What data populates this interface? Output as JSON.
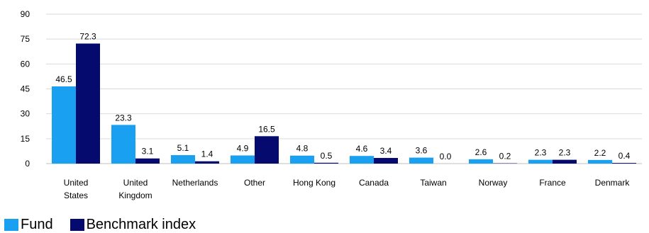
{
  "chart_data": {
    "type": "bar",
    "categories": [
      "United States",
      "United Kingdom",
      "Netherlands",
      "Other",
      "Hong Kong",
      "Canada",
      "Taiwan",
      "Norway",
      "France",
      "Denmark"
    ],
    "category_lines": [
      [
        "United",
        "States"
      ],
      [
        "United",
        "Kingdom"
      ],
      [
        "Netherlands"
      ],
      [
        "Other"
      ],
      [
        "Hong Kong"
      ],
      [
        "Canada"
      ],
      [
        "Taiwan"
      ],
      [
        "Norway"
      ],
      [
        "France"
      ],
      [
        "Denmark"
      ]
    ],
    "series": [
      {
        "name": "Fund",
        "color": "#19a0f0",
        "values": [
          46.5,
          23.3,
          5.1,
          4.9,
          4.8,
          4.6,
          3.6,
          2.6,
          2.3,
          2.2
        ]
      },
      {
        "name": "Benchmark index",
        "color": "#050a6e",
        "values": [
          72.3,
          3.1,
          1.4,
          16.5,
          0.5,
          3.4,
          0.0,
          0.2,
          2.3,
          0.4
        ]
      }
    ],
    "yticks": [
      0,
      15,
      30,
      45,
      60,
      75,
      90
    ],
    "ylim": [
      0,
      90
    ],
    "grid": true,
    "legend_position": "bottom-left",
    "title": "",
    "xlabel": "",
    "ylabel": ""
  }
}
